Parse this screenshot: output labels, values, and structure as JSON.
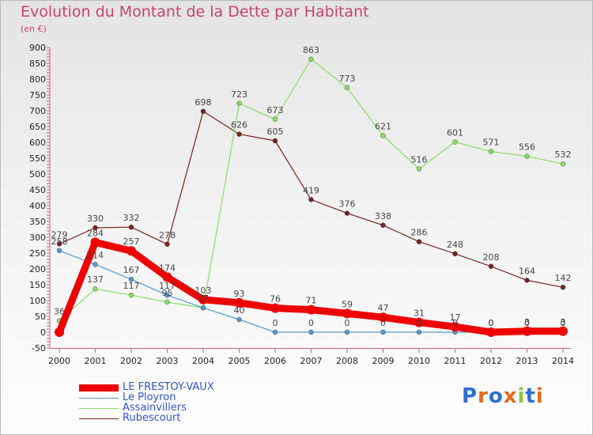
{
  "title": "Evolution du Montant de la Dette par Habitant",
  "subtitle": "(en €)",
  "logo_text": "Proxiti",
  "chart_data": {
    "type": "line",
    "title": "Evolution du Montant de la Dette par Habitant",
    "ylabel": "(en €)",
    "x": [
      "2000",
      "2001",
      "2002",
      "2003",
      "2004",
      "2005",
      "2006",
      "2007",
      "2008",
      "2009",
      "2010",
      "2011",
      "2012",
      "2013",
      "2014"
    ],
    "ylim": [
      -50,
      900
    ],
    "yticks": [
      -50,
      0,
      50,
      100,
      150,
      200,
      250,
      300,
      350,
      400,
      450,
      500,
      550,
      600,
      650,
      700,
      750,
      800,
      850,
      900
    ],
    "grid": false,
    "legend_position": "bottom-left",
    "series": [
      {
        "name": "LE FRESTOY-VAUX",
        "color": "#ee0000",
        "values": [
          0,
          284,
          257,
          174,
          103,
          93,
          76,
          71,
          59,
          47,
          31,
          17,
          0,
          3,
          3
        ]
      },
      {
        "name": "Le Ployron",
        "color": "#5599cc",
        "values": [
          258,
          214,
          167,
          117,
          77,
          40,
          0,
          0,
          0,
          0,
          0,
          0,
          0,
          0,
          0
        ]
      },
      {
        "name": "Assainvillers",
        "color": "#88dd66",
        "values": [
          36,
          137,
          117,
          95,
          77,
          723,
          673,
          863,
          773,
          621,
          516,
          601,
          571,
          556,
          532
        ]
      },
      {
        "name": "Rubescourt",
        "color": "#772222",
        "values": [
          279,
          330,
          332,
          278,
          698,
          626,
          605,
          419,
          376,
          338,
          286,
          248,
          208,
          164,
          142
        ]
      }
    ],
    "data_labels": {
      "LE FRESTOY-VAUX": [
        "",
        "284",
        "257",
        "174",
        "103",
        "93",
        "76",
        "71",
        "59",
        "47",
        "31",
        "17",
        "0",
        "3",
        "3"
      ],
      "Le Ployron": [
        "258",
        "214",
        "167",
        "117",
        "77",
        "40",
        "0",
        "0",
        "0",
        "0",
        "0",
        "0",
        "0",
        "0",
        "0"
      ],
      "Assainvillers": [
        "36",
        "137",
        "117",
        "95",
        "77",
        "723",
        "673",
        "863",
        "773",
        "621",
        "516",
        "601",
        "571",
        "556",
        "532"
      ],
      "Rubescourt": [
        "279",
        "330",
        "332",
        "278",
        "698",
        "626",
        "605",
        "419",
        "376",
        "338",
        "286",
        "248",
        "208",
        "164",
        "142"
      ]
    }
  }
}
